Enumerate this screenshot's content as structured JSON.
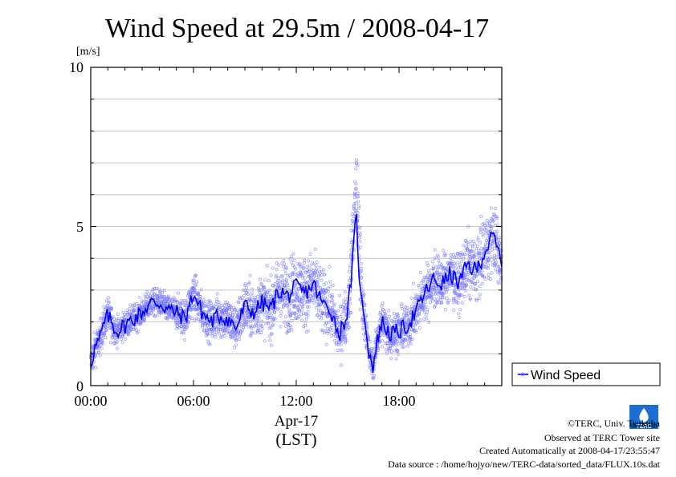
{
  "chart_data": {
    "type": "scatter",
    "title": "Wind Speed at 29.5m / 2008-04-17",
    "ylabel": "[m/s]",
    "xlabel": "(LST)",
    "date_label": "Apr-17",
    "x_ticks": [
      "00:00",
      "06:00",
      "12:00",
      "18:00"
    ],
    "y_ticks": [
      "0",
      "5",
      "10"
    ],
    "ylim": [
      0,
      10
    ],
    "xlim_hours": [
      0,
      24
    ],
    "grid": true,
    "legend_position": "right",
    "series": [
      {
        "name": "Wind Speed",
        "color": "#0000ff",
        "point_color": "#7777ff",
        "x_hours": [
          0.0,
          0.25,
          0.5,
          0.75,
          1.0,
          1.5,
          2.0,
          2.5,
          3.0,
          3.5,
          4.0,
          4.5,
          5.0,
          5.5,
          6.0,
          6.5,
          7.0,
          7.5,
          8.0,
          8.5,
          9.0,
          9.5,
          10.0,
          10.5,
          11.0,
          11.5,
          12.0,
          12.5,
          13.0,
          13.5,
          14.0,
          14.5,
          15.0,
          15.25,
          15.5,
          15.75,
          16.0,
          16.25,
          16.5,
          16.75,
          17.0,
          17.5,
          18.0,
          18.5,
          19.0,
          19.5,
          20.0,
          20.5,
          21.0,
          21.5,
          22.0,
          22.5,
          23.0,
          23.5,
          23.9
        ],
        "mean": [
          0.7,
          1.2,
          1.4,
          1.9,
          2.2,
          1.7,
          1.9,
          2.1,
          2.3,
          2.6,
          2.6,
          2.4,
          2.3,
          2.1,
          2.9,
          2.3,
          2.0,
          2.2,
          2.1,
          1.8,
          2.5,
          2.3,
          2.6,
          2.4,
          3.0,
          2.8,
          3.1,
          2.9,
          3.2,
          2.6,
          2.4,
          1.6,
          2.3,
          3.6,
          5.4,
          2.8,
          2.2,
          1.0,
          0.6,
          1.5,
          2.0,
          1.6,
          1.7,
          1.9,
          2.3,
          2.9,
          3.3,
          3.2,
          3.5,
          3.2,
          3.8,
          3.6,
          4.2,
          4.7,
          4.0
        ],
        "spread": [
          0.5,
          0.6,
          0.6,
          0.6,
          0.7,
          0.5,
          0.5,
          0.5,
          0.5,
          0.5,
          0.5,
          0.5,
          0.6,
          0.7,
          0.8,
          0.7,
          0.7,
          0.8,
          0.8,
          0.8,
          1.0,
          1.0,
          1.0,
          1.1,
          1.2,
          1.3,
          1.3,
          1.3,
          1.2,
          1.2,
          1.1,
          1.0,
          1.0,
          1.2,
          1.4,
          1.1,
          0.9,
          0.6,
          0.5,
          0.6,
          0.8,
          0.8,
          0.8,
          0.8,
          0.9,
          0.9,
          1.0,
          1.0,
          1.0,
          1.0,
          1.1,
          1.1,
          1.2,
          1.2,
          1.3
        ]
      }
    ]
  },
  "footer": {
    "copyright": "©TERC, Univ. Tsukuba",
    "observed": "Observed at TERC Tower site",
    "created": "Created Automatically at 2008-04-17/23:55:47",
    "source": "Data source : /home/hojyo/new/TERC-data/sorted_data/FLUX.10s.dat"
  },
  "logo": {
    "text": "TERC"
  }
}
